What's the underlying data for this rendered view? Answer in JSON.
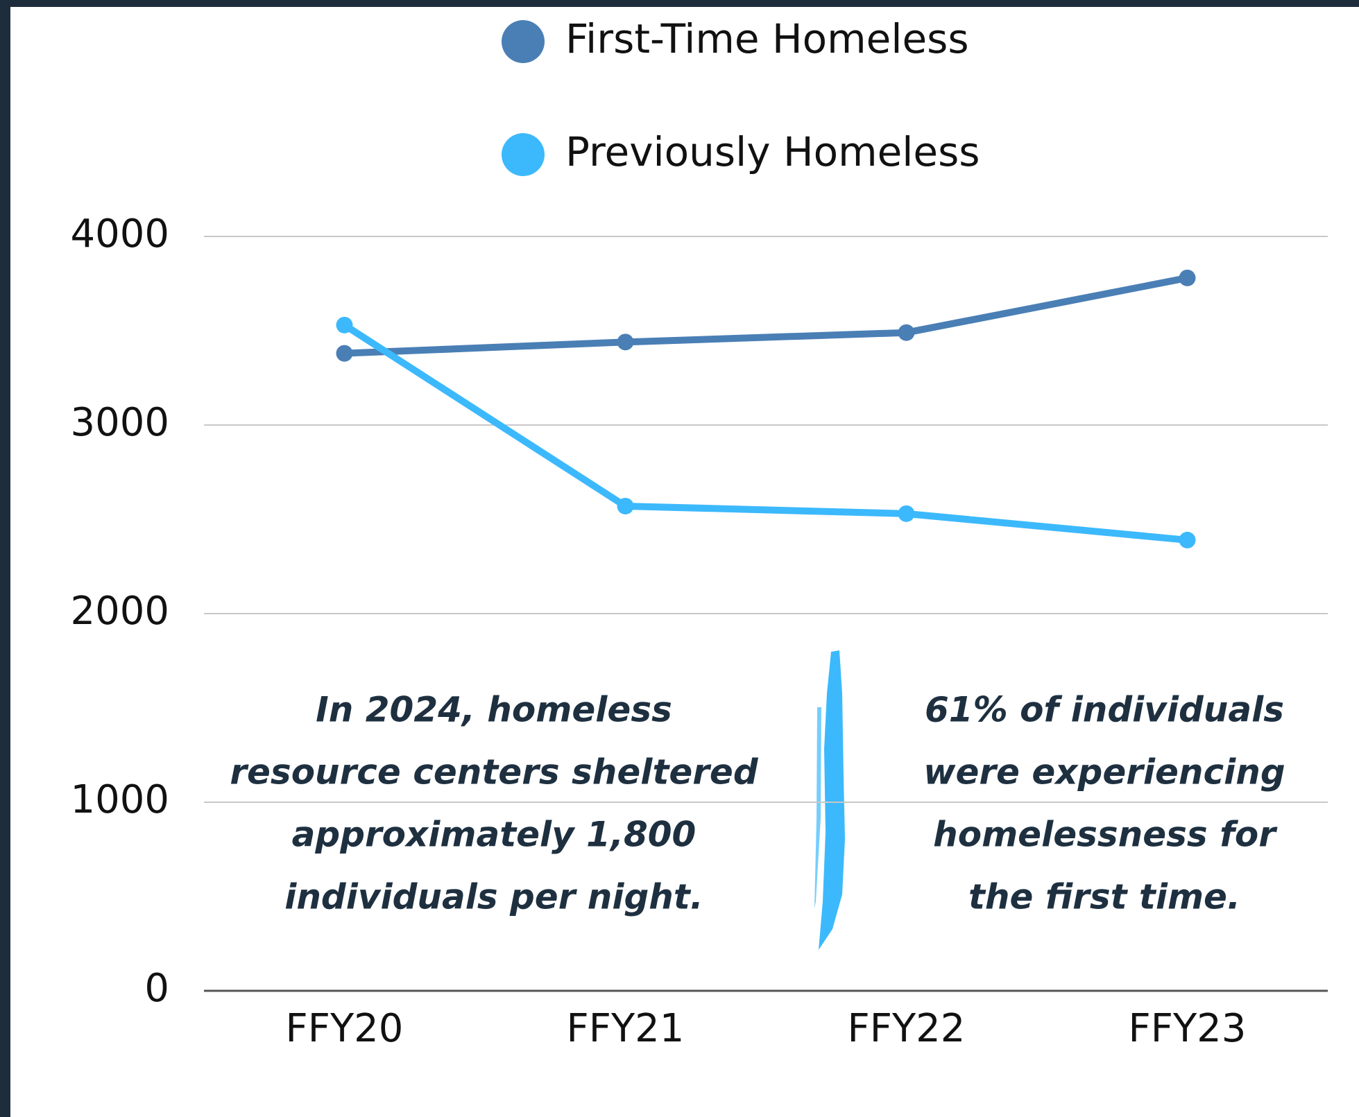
{
  "chart_data": {
    "type": "line",
    "categories": [
      "FFY20",
      "FFY21",
      "FFY22",
      "FFY23"
    ],
    "series": [
      {
        "name": "First-Time Homeless",
        "color": "#4a7fb5",
        "values": [
          3380,
          3440,
          3490,
          3780
        ]
      },
      {
        "name": "Previously Homeless",
        "color": "#3cb9fc",
        "values": [
          3530,
          2570,
          2530,
          2390
        ]
      }
    ],
    "ylim": [
      0,
      4000
    ],
    "yticks": [
      0,
      1000,
      2000,
      3000,
      4000
    ],
    "grid": true,
    "annotations": [
      {
        "lines": [
          "In 2024, homeless",
          "resource centers sheltered",
          "approximately 1,800",
          "individuals per night."
        ]
      },
      {
        "lines": [
          "61% of individuals",
          "were experiencing",
          "homelessness for",
          "the first time."
        ]
      }
    ]
  }
}
